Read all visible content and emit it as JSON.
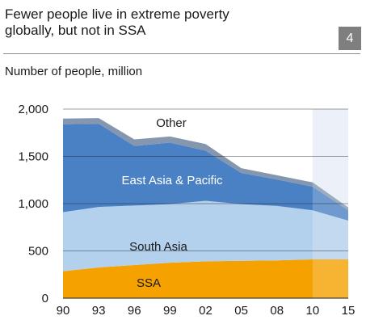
{
  "header": {
    "title_line1": "Fewer people live in extreme poverty",
    "title_line2": "globally, but not in SSA",
    "badge": "4",
    "subtitle": "Number of people, million"
  },
  "chart_data": {
    "type": "area",
    "stacked": true,
    "title": "Fewer people live in extreme poverty globally, but not in SSA",
    "ylabel": "Number of people, million",
    "categories": [
      "90",
      "93",
      "96",
      "99",
      "02",
      "05",
      "08",
      "10",
      "15"
    ],
    "x_years": [
      1990,
      1993,
      1996,
      1999,
      2002,
      2005,
      2008,
      2010,
      2015
    ],
    "y_ticks": [
      "0",
      "500",
      "1,000",
      "1,500",
      "2,000"
    ],
    "y_tick_values": [
      0,
      500,
      1000,
      1500,
      2000
    ],
    "ylim": [
      0,
      2000
    ],
    "grid": "horizontal",
    "shaded_from_year": 2010,
    "series": [
      {
        "name": "SSA",
        "color": "#f5a200",
        "values": [
          285,
          325,
          350,
          375,
          390,
          395,
          400,
          410,
          410
        ]
      },
      {
        "name": "South Asia",
        "color": "#b3d0ed",
        "values": [
          625,
          640,
          630,
          620,
          640,
          600,
          575,
          520,
          410
        ]
      },
      {
        "name": "East Asia & Pacific",
        "color": "#4a81c4",
        "values": [
          930,
          880,
          630,
          650,
          530,
          330,
          280,
          250,
          110
        ]
      },
      {
        "name": "Other",
        "color": "#8497ae",
        "values": [
          60,
          60,
          70,
          65,
          70,
          50,
          45,
          45,
          30
        ]
      }
    ]
  }
}
